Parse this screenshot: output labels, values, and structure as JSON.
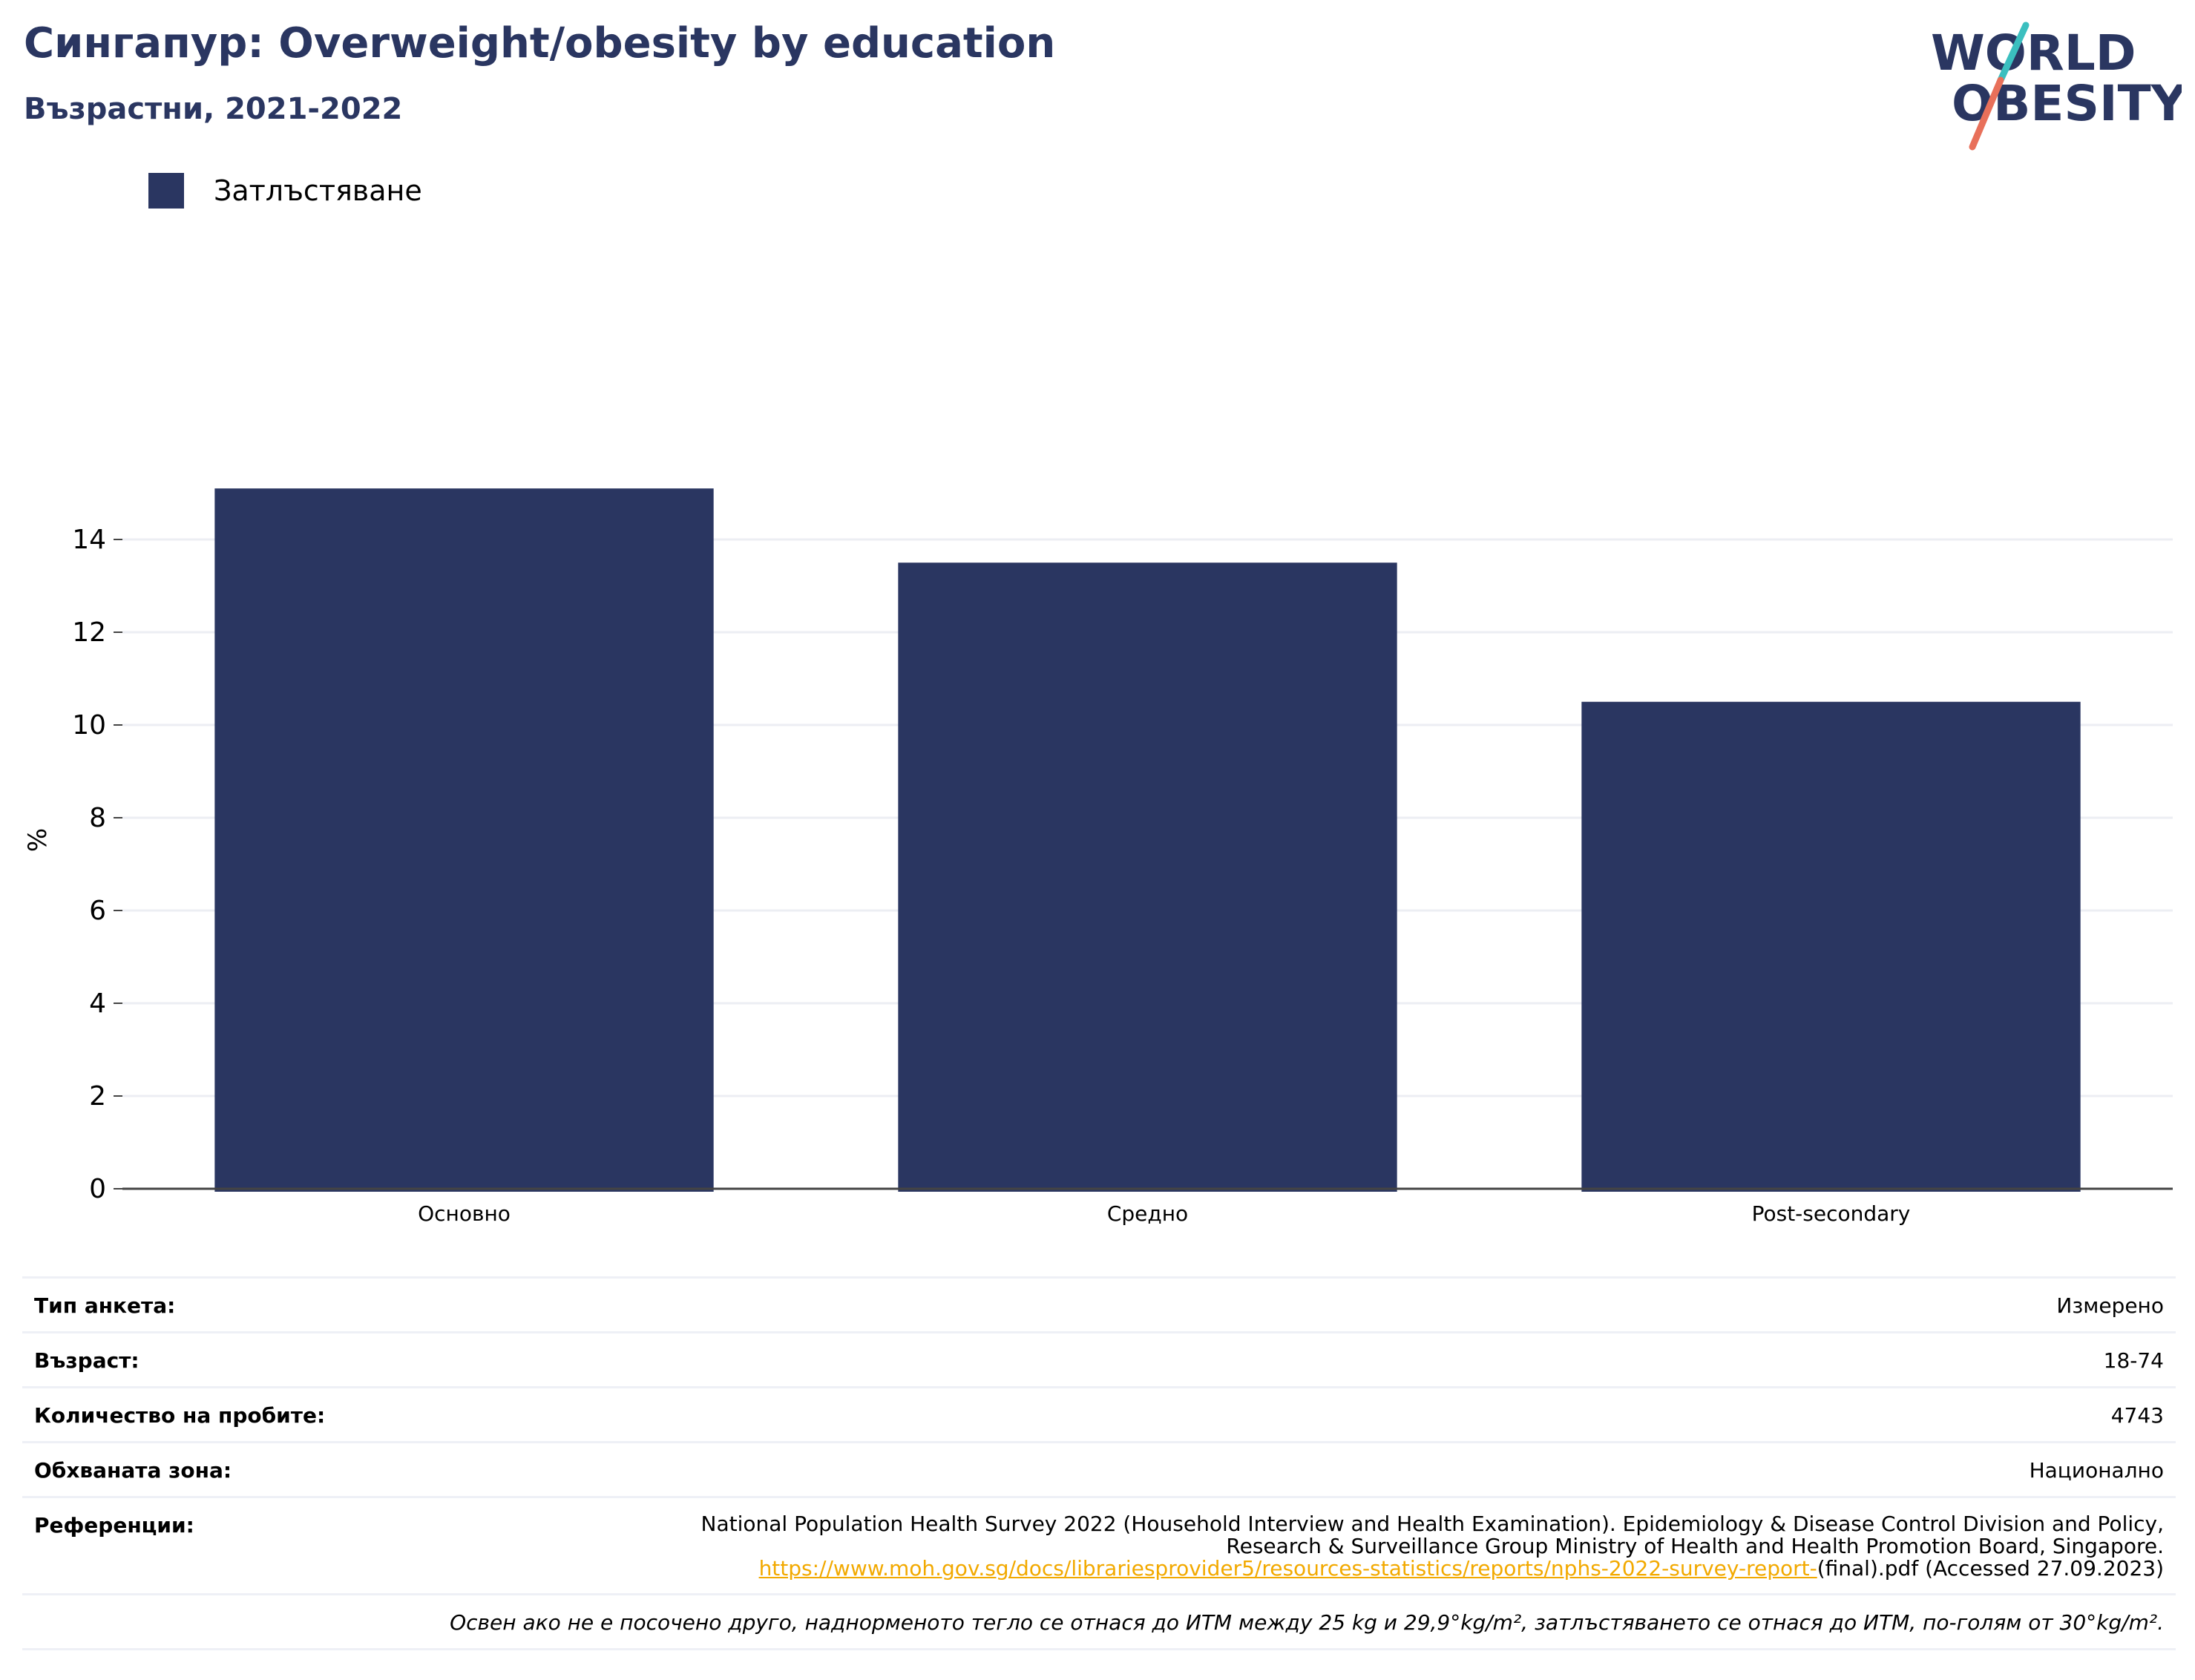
{
  "header": {
    "title": "Сингапур: Overweight/obesity by education",
    "subtitle": "Възрастни, 2021-2022"
  },
  "logo": {
    "line1": "WORLD",
    "line2": "OBESITY",
    "colors": {
      "text": "#2a3661",
      "slash_top": "#3bbfbf",
      "slash_bottom": "#e8705a"
    }
  },
  "legend": {
    "items": [
      {
        "label": "Затлъстяване",
        "color": "#2a3661"
      }
    ]
  },
  "chart_data": {
    "type": "bar",
    "categories": [
      "Основно",
      "Средно",
      "Post-secondary"
    ],
    "series": [
      {
        "name": "Затлъстяване",
        "values": [
          15.1,
          13.5,
          10.5
        ],
        "color": "#2a3661"
      }
    ],
    "ylabel": "%",
    "xlabel": "",
    "ylim": [
      0,
      16
    ],
    "yticks": [
      0,
      2,
      4,
      6,
      8,
      10,
      12,
      14
    ],
    "grid": true,
    "legend_position": "top-left"
  },
  "info": {
    "survey_type_label": "Тип анкета:",
    "survey_type_value": "Измерено",
    "age_label": "Възраст:",
    "age_value": "18-74",
    "sample_label": "Количество на пробите:",
    "sample_value": "4743",
    "area_label": "Обхваната зона:",
    "area_value": "Национално",
    "refs_label": "Референции:",
    "refs_line1": "National Population Health Survey 2022 (Household Interview and Health Examination). Epidemiology & Disease Control Division and Policy,",
    "refs_line2": "Research & Surveillance Group Ministry of Health and Health Promotion Board, Singapore.",
    "refs_link": "https://www.moh.gov.sg/docs/librariesprovider5/resources-statistics/reports/nphs-2022-survey-report-",
    "refs_tail": "(final).pdf (Accessed 27.09.2023)",
    "note": "Освен ако не е посочено друго, наднорменото тегло се отнася до ИТМ между 25 kg и 29,9°kg/m², затлъстяването се отнася до ИТМ, по-голям от 30°kg/m²."
  }
}
